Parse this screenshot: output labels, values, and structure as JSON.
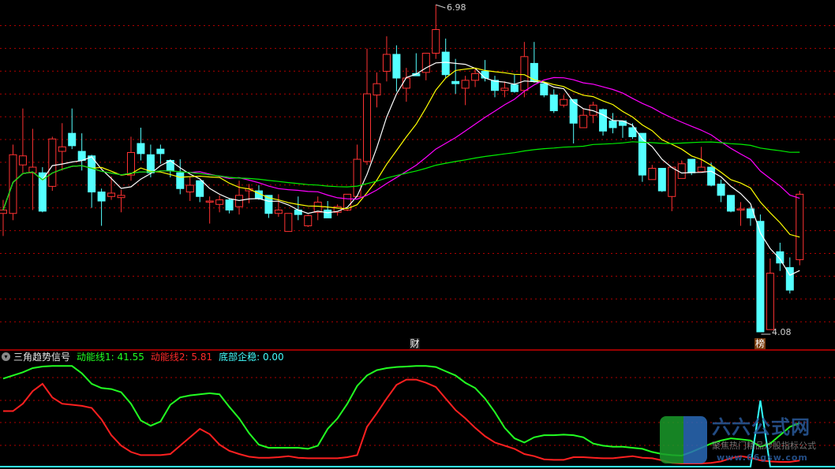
{
  "colors": {
    "up": "#ff3232",
    "down": "#54ffff",
    "grid": "#b00000",
    "ma5": "#ffffff",
    "ma10": "#ffff00",
    "ma20": "#ff00ff",
    "ma60": "#00ee00",
    "line1": "#22ff22",
    "line2": "#ff2020",
    "line3": "#33ffff"
  },
  "chart_data": [
    {
      "type": "candlestick",
      "ylim": [
        4.08,
        6.98
      ],
      "grid": true,
      "ohlc_fields": [
        "open",
        "high",
        "low",
        "close"
      ],
      "ohlc": [
        [
          5.13,
          5.25,
          4.93,
          5.16
        ],
        [
          5.13,
          5.74,
          5.07,
          5.65
        ],
        [
          5.56,
          6.06,
          5.49,
          5.64
        ],
        [
          5.49,
          5.88,
          5.16,
          5.54
        ],
        [
          5.49,
          5.54,
          5.14,
          5.15
        ],
        [
          5.37,
          5.81,
          5.33,
          5.79
        ],
        [
          5.68,
          5.93,
          5.51,
          5.72
        ],
        [
          5.84,
          6.06,
          5.7,
          5.73
        ],
        [
          5.68,
          5.84,
          5.51,
          5.6
        ],
        [
          5.64,
          5.65,
          5.18,
          5.32
        ],
        [
          5.32,
          5.35,
          5.02,
          5.24
        ],
        [
          5.28,
          5.46,
          5.25,
          5.31
        ],
        [
          5.27,
          5.34,
          5.14,
          5.29
        ],
        [
          5.47,
          5.81,
          5.42,
          5.67
        ],
        [
          5.75,
          5.89,
          5.6,
          5.66
        ],
        [
          5.65,
          5.74,
          5.45,
          5.49
        ],
        [
          5.7,
          5.74,
          5.57,
          5.66
        ],
        [
          5.6,
          5.61,
          5.45,
          5.51
        ],
        [
          5.49,
          5.61,
          5.3,
          5.35
        ],
        [
          5.32,
          5.45,
          5.24,
          5.38
        ],
        [
          5.42,
          5.42,
          5.23,
          5.28
        ],
        [
          5.23,
          5.28,
          5.04,
          5.24
        ],
        [
          5.21,
          5.29,
          5.14,
          5.25
        ],
        [
          5.25,
          5.26,
          5.13,
          5.16
        ],
        [
          5.19,
          5.42,
          5.12,
          5.29
        ],
        [
          5.33,
          5.39,
          5.22,
          5.35
        ],
        [
          5.33,
          5.38,
          5.25,
          5.26
        ],
        [
          5.29,
          5.29,
          5.09,
          5.13
        ],
        [
          5.13,
          5.3,
          5.1,
          5.16
        ],
        [
          4.97,
          5.13,
          4.97,
          5.13
        ],
        [
          5.16,
          5.28,
          5.07,
          5.12
        ],
        [
          5.02,
          5.12,
          5.01,
          5.11
        ],
        [
          5.14,
          5.28,
          5.07,
          5.23
        ],
        [
          5.16,
          5.24,
          5.09,
          5.09
        ],
        [
          5.14,
          5.21,
          5.11,
          5.19
        ],
        [
          5.16,
          5.3,
          5.15,
          5.3
        ],
        [
          5.28,
          5.74,
          5.28,
          5.61
        ],
        [
          5.59,
          6.59,
          5.56,
          6.19
        ],
        [
          6.18,
          6.38,
          6.07,
          6.28
        ],
        [
          6.39,
          6.7,
          6.3,
          6.54
        ],
        [
          6.54,
          6.62,
          6.21,
          6.33
        ],
        [
          6.24,
          6.42,
          6.12,
          6.33
        ],
        [
          6.37,
          6.55,
          6.35,
          6.35
        ],
        [
          6.38,
          6.55,
          6.31,
          6.55
        ],
        [
          6.55,
          6.98,
          6.5,
          6.76
        ],
        [
          6.56,
          6.68,
          6.33,
          6.36
        ],
        [
          6.3,
          6.5,
          6.19,
          6.28
        ],
        [
          6.24,
          6.35,
          6.09,
          6.31
        ],
        [
          6.31,
          6.42,
          6.25,
          6.37
        ],
        [
          6.39,
          6.49,
          6.3,
          6.33
        ],
        [
          6.31,
          6.35,
          6.16,
          6.22
        ],
        [
          6.22,
          6.3,
          6.16,
          6.24
        ],
        [
          6.27,
          6.36,
          6.2,
          6.21
        ],
        [
          6.22,
          6.65,
          6.16,
          6.52
        ],
        [
          6.46,
          6.65,
          6.29,
          6.3
        ],
        [
          6.28,
          6.3,
          6.16,
          6.18
        ],
        [
          6.18,
          6.23,
          6.02,
          6.04
        ],
        [
          6.09,
          6.18,
          6.07,
          6.14
        ],
        [
          6.14,
          6.14,
          5.75,
          5.93
        ],
        [
          5.89,
          6.06,
          5.89,
          6.0
        ],
        [
          6.0,
          6.12,
          5.93,
          6.09
        ],
        [
          6.05,
          6.06,
          5.82,
          5.86
        ],
        [
          5.95,
          6.02,
          5.84,
          5.89
        ],
        [
          5.95,
          5.95,
          5.8,
          5.91
        ],
        [
          5.89,
          5.93,
          5.79,
          5.81
        ],
        [
          5.84,
          5.84,
          5.41,
          5.47
        ],
        [
          5.43,
          5.56,
          5.43,
          5.53
        ],
        [
          5.53,
          5.53,
          5.32,
          5.33
        ],
        [
          5.28,
          5.54,
          5.15,
          5.54
        ],
        [
          5.44,
          5.6,
          5.44,
          5.57
        ],
        [
          5.61,
          5.61,
          5.47,
          5.49
        ],
        [
          5.5,
          5.72,
          5.5,
          5.54
        ],
        [
          5.54,
          5.58,
          5.37,
          5.38
        ],
        [
          5.39,
          5.43,
          5.23,
          5.29
        ],
        [
          5.29,
          5.29,
          5.14,
          5.15
        ],
        [
          5.16,
          5.23,
          5.02,
          5.17
        ],
        [
          5.17,
          5.19,
          5.02,
          5.09
        ],
        [
          5.06,
          5.12,
          4.08,
          4.08
        ],
        [
          4.1,
          4.73,
          4.1,
          4.6
        ],
        [
          4.79,
          4.87,
          4.62,
          4.69
        ],
        [
          4.65,
          4.74,
          4.42,
          4.45
        ],
        [
          4.72,
          5.33,
          4.67,
          5.3
        ]
      ],
      "moving_averages": [
        5,
        10,
        20,
        60
      ],
      "annotations": {
        "high_label": "6.98",
        "low_label": "4.08",
        "marker_cai": "财",
        "marker_bang": "榜"
      }
    },
    {
      "type": "line",
      "title": "三角趋势信号",
      "ylim": [
        0,
        100
      ],
      "grid": true,
      "series": [
        {
          "name": "动能线1",
          "last": "41.55",
          "values": [
            84,
            87,
            90,
            94,
            95.5,
            96,
            96,
            96,
            89,
            79,
            75,
            74,
            71,
            60,
            44,
            39,
            43,
            59,
            66,
            68,
            69,
            70,
            69,
            57,
            46,
            32,
            21,
            18,
            18,
            18,
            18,
            17,
            20,
            36,
            46,
            60,
            77,
            87,
            92,
            94,
            95,
            95.5,
            96,
            96,
            95,
            91,
            87,
            80,
            75,
            65,
            52,
            37,
            27,
            23,
            28,
            30,
            30,
            30.5,
            30,
            28,
            22,
            20,
            19,
            19,
            18,
            17,
            14,
            12,
            11,
            10.5,
            14,
            18,
            22,
            25,
            27,
            26,
            25,
            19,
            22,
            30,
            38,
            41.55
          ]
        },
        {
          "name": "动能线2",
          "last": "5.81",
          "values": [
            53,
            53,
            60,
            72,
            79,
            66,
            60,
            59,
            58,
            56,
            45,
            30,
            20,
            14,
            11,
            11,
            11,
            12,
            20,
            28,
            36,
            31,
            21,
            15,
            12,
            9.5,
            8.5,
            8.5,
            9,
            10,
            8.5,
            8,
            8,
            8,
            8,
            9,
            11,
            38,
            51,
            65,
            78,
            83,
            83,
            80,
            76,
            65,
            54,
            46,
            37,
            29,
            23,
            20,
            17,
            12,
            10,
            7,
            6.5,
            6.5,
            9,
            9,
            8.5,
            8,
            8,
            9,
            10,
            8.5,
            8,
            6,
            3.5,
            3,
            3,
            3,
            3.5,
            5,
            8,
            10,
            8.5,
            6,
            5,
            4.5,
            4.5,
            5.81
          ]
        },
        {
          "name": "底部企稳",
          "last": "0.00",
          "values": [
            0,
            0,
            0,
            0,
            0,
            0,
            0,
            0,
            0,
            0,
            0,
            0,
            0,
            0,
            0,
            0,
            0,
            0,
            0,
            0,
            0,
            0,
            0,
            0,
            0,
            0,
            0,
            0,
            0,
            0,
            0,
            0,
            0,
            0,
            0,
            0,
            0,
            0,
            0,
            0,
            0,
            0,
            0,
            0,
            0,
            0,
            0,
            0,
            0,
            0,
            0,
            0,
            0,
            0,
            0,
            0,
            0,
            0,
            0,
            0,
            0,
            0,
            0,
            0,
            0,
            0,
            0,
            0,
            0,
            0,
            0,
            0,
            0,
            0,
            0,
            0,
            0,
            63,
            0,
            0,
            0,
            0
          ]
        }
      ]
    }
  ],
  "indicator": {
    "title": "三角趋势信号",
    "l1": "动能线1: 41.55",
    "l2": "动能线2: 5.81",
    "l3": "底部企稳: 0.00",
    "menu_icon": "chevron-down-icon"
  },
  "logo": {
    "name": "六六公式网",
    "slogan": "聚焦热门精品炒股指标公式",
    "url": "www.66gsw.com"
  }
}
